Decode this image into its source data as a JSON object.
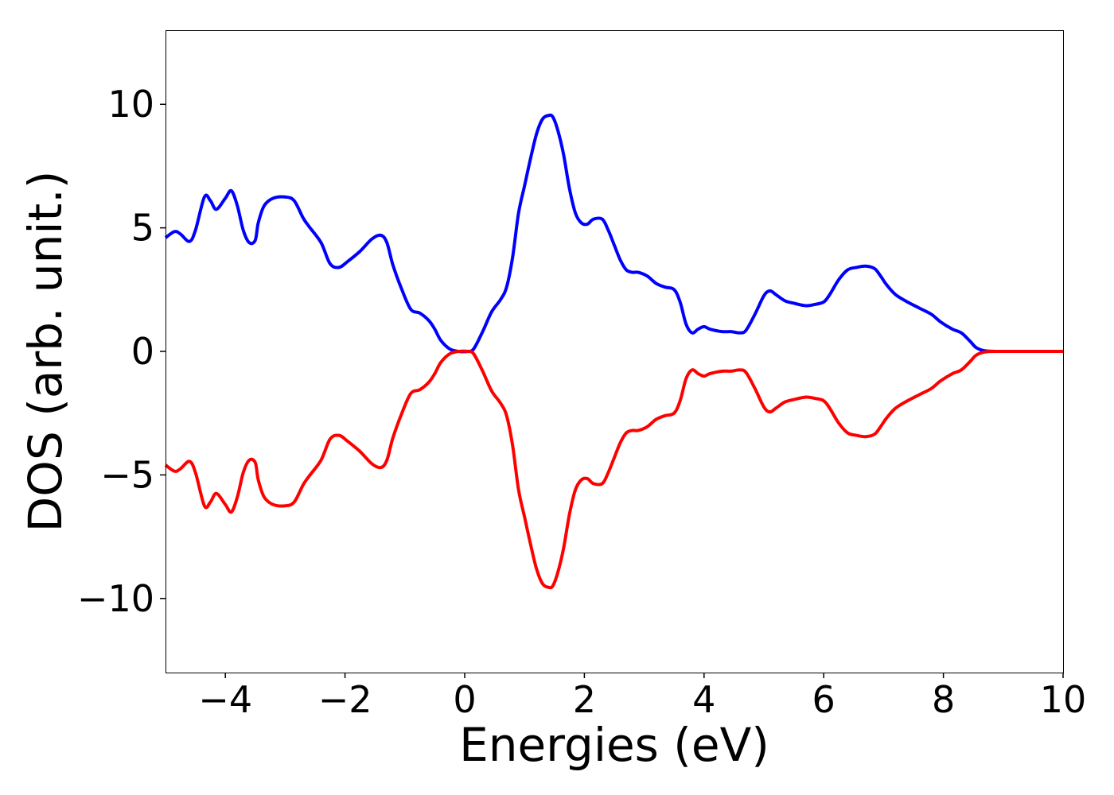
{
  "chart_data": {
    "type": "line",
    "title": "",
    "xlabel": "Energies (eV)",
    "ylabel": "DOS (arb. unit.)",
    "xlim": [
      -5,
      10
    ],
    "ylim": [
      -13,
      13
    ],
    "xticks": [
      -4,
      -2,
      0,
      2,
      4,
      6,
      8,
      10
    ],
    "xtick_labels": [
      "−4",
      "−2",
      "0",
      "2",
      "4",
      "6",
      "8",
      "10"
    ],
    "yticks": [
      -10,
      -5,
      0,
      5,
      10
    ],
    "ytick_labels": [
      "−10",
      "−5",
      "0",
      "5",
      "10"
    ],
    "grid": false,
    "legend": "none",
    "series": [
      {
        "color": "#0000ff",
        "x": [
          -5.0,
          -4.85,
          -4.75,
          -4.6,
          -4.5,
          -4.35,
          -4.25,
          -4.15,
          -4.0,
          -3.9,
          -3.8,
          -3.7,
          -3.6,
          -3.5,
          -3.45,
          -3.35,
          -3.2,
          -3.0,
          -2.85,
          -2.7,
          -2.6,
          -2.4,
          -2.25,
          -2.1,
          -1.95,
          -1.75,
          -1.55,
          -1.4,
          -1.3,
          -1.2,
          -1.05,
          -0.9,
          -0.75,
          -0.6,
          -0.5,
          -0.4,
          -0.25,
          -0.1,
          0.05,
          0.15,
          0.3,
          0.45,
          0.6,
          0.7,
          0.8,
          0.9,
          1.0,
          1.1,
          1.2,
          1.3,
          1.4,
          1.47,
          1.55,
          1.65,
          1.75,
          1.85,
          1.95,
          2.05,
          2.15,
          2.3,
          2.4,
          2.5,
          2.6,
          2.7,
          2.8,
          2.9,
          3.05,
          3.2,
          3.35,
          3.5,
          3.6,
          3.7,
          3.8,
          3.9,
          4.0,
          4.1,
          4.3,
          4.45,
          4.6,
          4.7,
          4.85,
          5.0,
          5.1,
          5.2,
          5.35,
          5.5,
          5.7,
          5.85,
          6.0,
          6.1,
          6.25,
          6.4,
          6.55,
          6.7,
          6.85,
          6.95,
          7.05,
          7.2,
          7.4,
          7.6,
          7.8,
          7.95,
          8.15,
          8.3,
          8.45,
          8.55,
          8.7,
          9.0,
          10.0
        ],
        "y": [
          4.6,
          4.85,
          4.75,
          4.45,
          4.9,
          6.25,
          6.1,
          5.75,
          6.2,
          6.5,
          5.9,
          4.9,
          4.4,
          4.5,
          5.2,
          5.9,
          6.2,
          6.25,
          6.1,
          5.4,
          5.05,
          4.4,
          3.55,
          3.4,
          3.65,
          4.05,
          4.55,
          4.7,
          4.4,
          3.5,
          2.5,
          1.7,
          1.55,
          1.25,
          0.9,
          0.45,
          0.1,
          0.0,
          0.0,
          0.1,
          0.8,
          1.6,
          2.1,
          2.6,
          3.8,
          5.6,
          6.7,
          7.8,
          8.8,
          9.4,
          9.55,
          9.5,
          9.0,
          8.0,
          6.6,
          5.6,
          5.2,
          5.15,
          5.35,
          5.35,
          4.9,
          4.3,
          3.7,
          3.3,
          3.2,
          3.2,
          3.05,
          2.75,
          2.6,
          2.5,
          2.0,
          1.1,
          0.75,
          0.9,
          1.0,
          0.9,
          0.8,
          0.8,
          0.75,
          0.85,
          1.5,
          2.25,
          2.45,
          2.3,
          2.05,
          1.95,
          1.85,
          1.9,
          2.0,
          2.3,
          2.9,
          3.3,
          3.4,
          3.45,
          3.35,
          3.05,
          2.7,
          2.3,
          2.0,
          1.75,
          1.5,
          1.2,
          0.9,
          0.75,
          0.4,
          0.15,
          0.02,
          0.0,
          0.0
        ]
      },
      {
        "color": "#ff0000",
        "x": [
          -5.0,
          -4.85,
          -4.75,
          -4.6,
          -4.5,
          -4.35,
          -4.25,
          -4.15,
          -4.0,
          -3.9,
          -3.8,
          -3.7,
          -3.6,
          -3.5,
          -3.45,
          -3.35,
          -3.2,
          -3.0,
          -2.85,
          -2.7,
          -2.6,
          -2.4,
          -2.25,
          -2.1,
          -1.95,
          -1.75,
          -1.55,
          -1.4,
          -1.3,
          -1.2,
          -1.05,
          -0.9,
          -0.75,
          -0.6,
          -0.5,
          -0.4,
          -0.25,
          -0.1,
          0.05,
          0.15,
          0.3,
          0.45,
          0.6,
          0.7,
          0.8,
          0.9,
          1.0,
          1.1,
          1.2,
          1.3,
          1.4,
          1.47,
          1.55,
          1.65,
          1.75,
          1.85,
          1.95,
          2.05,
          2.15,
          2.3,
          2.4,
          2.5,
          2.6,
          2.7,
          2.8,
          2.9,
          3.05,
          3.2,
          3.35,
          3.5,
          3.6,
          3.7,
          3.8,
          3.9,
          4.0,
          4.1,
          4.3,
          4.45,
          4.6,
          4.7,
          4.85,
          5.0,
          5.1,
          5.2,
          5.35,
          5.5,
          5.7,
          5.85,
          6.0,
          6.1,
          6.25,
          6.4,
          6.55,
          6.7,
          6.85,
          6.95,
          7.05,
          7.2,
          7.4,
          7.6,
          7.8,
          7.95,
          8.15,
          8.3,
          8.45,
          8.55,
          8.7,
          9.0,
          10.0
        ],
        "y": [
          -4.6,
          -4.85,
          -4.75,
          -4.45,
          -4.9,
          -6.25,
          -6.1,
          -5.75,
          -6.2,
          -6.5,
          -5.9,
          -4.9,
          -4.4,
          -4.5,
          -5.2,
          -5.9,
          -6.2,
          -6.25,
          -6.1,
          -5.4,
          -5.05,
          -4.4,
          -3.55,
          -3.4,
          -3.65,
          -4.05,
          -4.55,
          -4.7,
          -4.4,
          -3.5,
          -2.5,
          -1.7,
          -1.55,
          -1.25,
          -0.9,
          -0.45,
          -0.1,
          0.0,
          0.0,
          -0.1,
          -0.8,
          -1.6,
          -2.1,
          -2.6,
          -3.8,
          -5.6,
          -6.7,
          -7.8,
          -8.8,
          -9.4,
          -9.55,
          -9.5,
          -9.0,
          -8.0,
          -6.6,
          -5.6,
          -5.2,
          -5.15,
          -5.35,
          -5.35,
          -4.9,
          -4.3,
          -3.7,
          -3.3,
          -3.2,
          -3.2,
          -3.05,
          -2.75,
          -2.6,
          -2.5,
          -2.0,
          -1.1,
          -0.75,
          -0.9,
          -1.0,
          -0.9,
          -0.8,
          -0.8,
          -0.75,
          -0.85,
          -1.5,
          -2.25,
          -2.45,
          -2.3,
          -2.05,
          -1.95,
          -1.85,
          -1.9,
          -2.0,
          -2.3,
          -2.9,
          -3.3,
          -3.4,
          -3.45,
          -3.35,
          -3.05,
          -2.7,
          -2.3,
          -2.0,
          -1.75,
          -1.5,
          -1.2,
          -0.9,
          -0.75,
          -0.4,
          -0.15,
          -0.02,
          0.0,
          0.0
        ]
      }
    ]
  }
}
